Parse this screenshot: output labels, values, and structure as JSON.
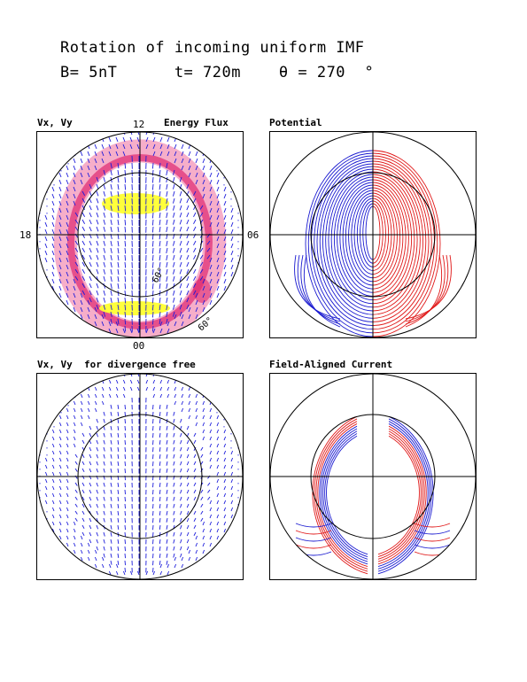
{
  "title": {
    "line1": "Rotation of incoming uniform IMF",
    "line2": "B= 5nT      t= 720m    θ = 270  °"
  },
  "panels": {
    "p1": {
      "label": "Vx, Vy",
      "label_right": "Energy Flux"
    },
    "p2": {
      "label": "Potential"
    },
    "p3": {
      "label": "Vx, Vy  for divergence free"
    },
    "p4": {
      "label": "Field-Aligned Current"
    }
  },
  "mlt_labels": {
    "top": "12",
    "left": "18",
    "right": "06",
    "bottom": "00"
  },
  "lat_labels": {
    "inner": "60°",
    "outer": "60°"
  },
  "colors": {
    "vector": "#1a1adb",
    "positive": "#e01818",
    "negative": "#1a1ad0",
    "flux_low": "#f4a0c0",
    "flux_mid": "#e02870",
    "flux_high": "#ffff30"
  }
}
